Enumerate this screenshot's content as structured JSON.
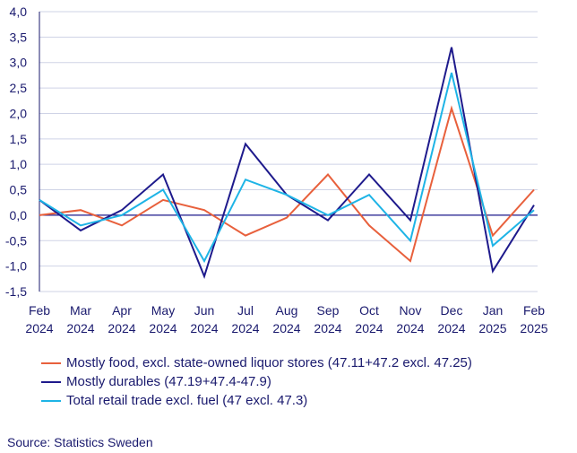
{
  "chart_data": {
    "type": "line",
    "categories": [
      [
        "Feb",
        "2024"
      ],
      [
        "Mar",
        "2024"
      ],
      [
        "Apr",
        "2024"
      ],
      [
        "May",
        "2024"
      ],
      [
        "Jun",
        "2024"
      ],
      [
        "Jul",
        "2024"
      ],
      [
        "Aug",
        "2024"
      ],
      [
        "Sep",
        "2024"
      ],
      [
        "Oct",
        "2024"
      ],
      [
        "Nov",
        "2024"
      ],
      [
        "Dec",
        "2024"
      ],
      [
        "Jan",
        "2025"
      ],
      [
        "Feb",
        "2025"
      ]
    ],
    "yticks": [
      "4,0",
      "3,5",
      "3,0",
      "2,5",
      "2,0",
      "1,5",
      "1,0",
      "0,5",
      "0,0",
      "-0,5",
      "-1,0",
      "-1,5"
    ],
    "ylim": [
      -1.5,
      4.0
    ],
    "grid": true,
    "legend_position": "bottom",
    "series": [
      {
        "name": "Mostly food, excl. state-owned liquor stores (47.11+47.2 excl. 47.25)",
        "color": "#e8603c",
        "values": [
          0.0,
          0.1,
          -0.2,
          0.3,
          0.1,
          -0.4,
          -0.05,
          0.8,
          -0.2,
          -0.9,
          2.1,
          -0.4,
          0.5
        ]
      },
      {
        "name": "Mostly durables (47.19+47.4-47.9)",
        "color": "#1e1a8c",
        "values": [
          0.3,
          -0.3,
          0.1,
          0.8,
          -1.2,
          1.4,
          0.4,
          -0.1,
          0.8,
          -0.1,
          3.3,
          -1.1,
          0.2
        ]
      },
      {
        "name": "Total retail trade excl. fuel (47 excl. 47.3)",
        "color": "#1eb4e6",
        "values": [
          0.3,
          -0.2,
          0.0,
          0.5,
          -0.9,
          0.7,
          0.4,
          0.0,
          0.4,
          -0.5,
          2.8,
          -0.6,
          0.1
        ]
      }
    ],
    "source": "Source: Statistics Sweden"
  }
}
